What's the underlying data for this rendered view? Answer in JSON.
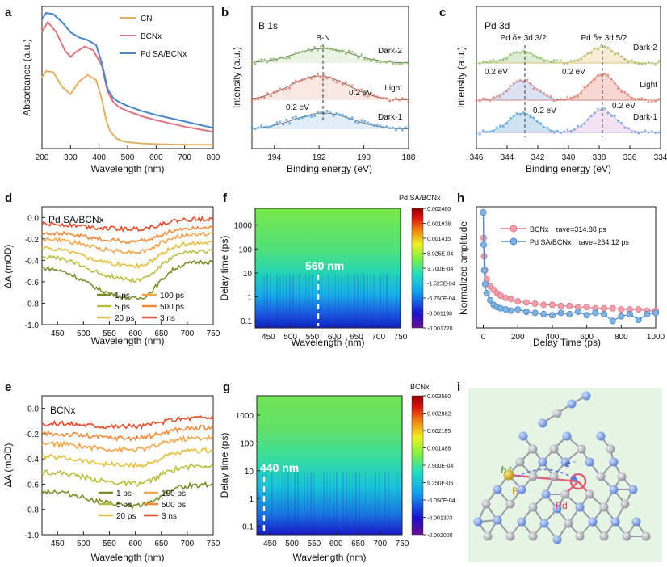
{
  "figure": {
    "panel_labels": [
      "a",
      "b",
      "c",
      "d",
      "e",
      "f",
      "g",
      "h",
      "i"
    ]
  },
  "chart_data": [
    {
      "id": "a",
      "type": "line",
      "xlabel": "Wavelength (nm)",
      "ylabel": "Absorbance (a.u.)",
      "xlim": [
        200,
        800
      ],
      "ylim": [
        0,
        1.1
      ],
      "xticks": [
        200,
        300,
        400,
        500,
        600,
        700,
        800
      ],
      "legend": [
        "CN",
        "BCNx",
        "Pd SA/BCNx"
      ],
      "series": [
        {
          "name": "CN",
          "color": "#e3b063",
          "x": [
            200,
            215,
            240,
            270,
            300,
            330,
            360,
            390,
            410,
            425,
            440,
            460,
            480,
            500,
            550,
            600,
            700,
            800
          ],
          "y": [
            0.55,
            0.6,
            0.59,
            0.48,
            0.42,
            0.52,
            0.57,
            0.53,
            0.38,
            0.22,
            0.13,
            0.08,
            0.06,
            0.05,
            0.04,
            0.035,
            0.03,
            0.03
          ]
        },
        {
          "name": "BCNx",
          "color": "#e07480",
          "x": [
            200,
            220,
            250,
            280,
            300,
            320,
            350,
            380,
            410,
            430,
            450,
            470,
            500,
            550,
            600,
            700,
            800
          ],
          "y": [
            0.9,
            0.98,
            0.9,
            0.76,
            0.71,
            0.75,
            0.79,
            0.76,
            0.64,
            0.44,
            0.36,
            0.32,
            0.29,
            0.25,
            0.22,
            0.17,
            0.13
          ]
        },
        {
          "name": "Pd SA/BCNx",
          "color": "#4a86c8",
          "x": [
            200,
            215,
            240,
            270,
            300,
            330,
            360,
            390,
            410,
            430,
            450,
            470,
            500,
            550,
            600,
            700,
            800
          ],
          "y": [
            1.0,
            1.05,
            1.04,
            0.98,
            0.9,
            0.86,
            0.84,
            0.8,
            0.66,
            0.46,
            0.39,
            0.36,
            0.33,
            0.29,
            0.26,
            0.21,
            0.16
          ]
        }
      ]
    },
    {
      "id": "b",
      "type": "scatter",
      "title": "B 1s",
      "xlabel": "Binding energy (eV)",
      "ylabel": "Intensity (a.u.)",
      "xlim": [
        195,
        188
      ],
      "xticks": [
        194,
        192,
        190,
        188
      ],
      "peak_label": "B-N",
      "peak_position": 191.8,
      "traces": [
        {
          "name": "Dark-2",
          "color": "#8fbf6a",
          "peak": 191.8
        },
        {
          "name": "Light",
          "color": "#e07a6a",
          "peak": 192.0
        },
        {
          "name": "Dark-1",
          "color": "#5aa2d8",
          "peak": 191.8
        }
      ],
      "annotations": [
        "0.2 eV",
        "0.2 eV"
      ]
    },
    {
      "id": "c",
      "type": "scatter",
      "title": "Pd 3d",
      "xlabel": "Binding energy (eV)",
      "ylabel": "Intensity (a.u.)",
      "xlim": [
        346,
        334
      ],
      "xticks": [
        346,
        344,
        342,
        340,
        338,
        336,
        334
      ],
      "peak_labels": [
        "Pd δ+ 3d 3/2",
        "Pd δ+ 3d 5/2"
      ],
      "peak_positions": [
        343.0,
        337.8
      ],
      "traces": [
        {
          "name": "Dark-2",
          "color": "#8fbf6a"
        },
        {
          "name": "Light",
          "color": "#e07a6a"
        },
        {
          "name": "Dark-1",
          "color": "#5aa2d8"
        }
      ],
      "annotations": [
        "0.2 eV",
        "0.2 eV",
        "0.2 eV",
        "0.2 eV"
      ]
    },
    {
      "id": "d",
      "type": "line",
      "title": "Pd SA/BCNx",
      "xlabel": "Wavelength (nm)",
      "ylabel": "ΔA (mOD)",
      "xlim": [
        420,
        750
      ],
      "ylim": [
        -1.0,
        0.1
      ],
      "xticks": [
        450,
        500,
        550,
        600,
        650,
        700,
        750
      ],
      "yticks": [
        0.0,
        -0.2,
        -0.4,
        -0.6,
        -0.8,
        -1.0
      ],
      "series": [
        {
          "name": "1 ps",
          "color": "#7a8f2a",
          "offset": -0.46,
          "depth": 0.26
        },
        {
          "name": "5 ps",
          "color": "#b8be3c",
          "offset": -0.36,
          "depth": 0.2
        },
        {
          "name": "20 ps",
          "color": "#e5c040",
          "offset": -0.28,
          "depth": 0.16
        },
        {
          "name": "100 ps",
          "color": "#f3a54a",
          "offset": -0.2,
          "depth": 0.12
        },
        {
          "name": "500 ps",
          "color": "#f08a3a",
          "offset": -0.14,
          "depth": 0.09
        },
        {
          "name": "3 ns",
          "color": "#e64a2a",
          "offset": -0.06,
          "depth": 0.06
        }
      ]
    },
    {
      "id": "e",
      "type": "line",
      "title": "BCNx",
      "xlabel": "Wavelength (nm)",
      "ylabel": "ΔA (mOD)",
      "xlim": [
        420,
        750
      ],
      "ylim": [
        -1.0,
        0.1
      ],
      "xticks": [
        450,
        500,
        550,
        600,
        650,
        700,
        750
      ],
      "yticks": [
        0.0,
        -0.2,
        -0.4,
        -0.6,
        -0.8,
        -1.0
      ],
      "series": [
        {
          "name": "1 ps",
          "color": "#7a8f2a",
          "offset": -0.65,
          "depth": 0.12
        },
        {
          "name": "5 ps",
          "color": "#b8be3c",
          "offset": -0.5,
          "depth": 0.1
        },
        {
          "name": "20 ps",
          "color": "#e5c040",
          "offset": -0.38,
          "depth": 0.08
        },
        {
          "name": "100 ps",
          "color": "#f3a54a",
          "offset": -0.28,
          "depth": 0.06
        },
        {
          "name": "500 ps",
          "color": "#f08a3a",
          "offset": -0.2,
          "depth": 0.05
        },
        {
          "name": "3 ns",
          "color": "#e64a2a",
          "offset": -0.12,
          "depth": 0.04
        }
      ]
    },
    {
      "id": "f",
      "type": "heatmap",
      "title": "Pd SA/BCNx",
      "xlabel": "Wavelength (nm)",
      "ylabel": "Delay time (ps)",
      "xlim": [
        420,
        750
      ],
      "ylim": [
        0.05,
        5000
      ],
      "xticks": [
        450,
        500,
        550,
        600,
        650,
        700,
        750
      ],
      "yticks": [
        "0.1",
        "1",
        "10",
        "100",
        "1000"
      ],
      "marker_wavelength": 560,
      "marker_label": "560 nm",
      "colorbar_ticks": [
        "0.002460",
        "0.001938",
        "0.001415",
        "8.925E-04",
        "3.700E-04",
        "-1.525E-04",
        "-6.750E-04",
        "-0.001198",
        "-0.001720"
      ]
    },
    {
      "id": "g",
      "type": "heatmap",
      "title": "BCNx",
      "xlabel": "Wavelength (nm)",
      "ylabel": "Delay time (ps)",
      "xlim": [
        420,
        750
      ],
      "ylim": [
        0.05,
        5000
      ],
      "xticks": [
        450,
        500,
        550,
        600,
        650,
        700,
        750
      ],
      "yticks": [
        "0.1",
        "1",
        "10",
        "100",
        "1000"
      ],
      "marker_wavelength": 440,
      "marker_label": "440 nm",
      "colorbar_ticks": [
        "0.003580",
        "0.002882",
        "0.002185",
        "0.001488",
        "7.900E-04",
        "9.250E-05",
        "-6.050E-04",
        "-0.001303",
        "-0.002000"
      ]
    },
    {
      "id": "h",
      "type": "scatter",
      "xlabel": "Delay Time (ps)",
      "ylabel": "Normalized amplitude",
      "xlim": [
        -40,
        1000
      ],
      "ylim": [
        0,
        1.05
      ],
      "xticks": [
        0,
        200,
        400,
        600,
        800,
        1000
      ],
      "series": [
        {
          "name": "BCNx",
          "tau_label": "τave=314.88 ps",
          "color": "#f0a0ac",
          "x": [
            0,
            2,
            5,
            10,
            20,
            40,
            60,
            80,
            100,
            130,
            160,
            200,
            250,
            300,
            350,
            400,
            450,
            500,
            550,
            600,
            650,
            700,
            750,
            800,
            850,
            900,
            950,
            1000
          ],
          "y": [
            1.0,
            0.78,
            0.62,
            0.5,
            0.42,
            0.36,
            0.33,
            0.3,
            0.28,
            0.26,
            0.25,
            0.23,
            0.22,
            0.21,
            0.2,
            0.2,
            0.19,
            0.19,
            0.18,
            0.18,
            0.17,
            0.17,
            0.17,
            0.16,
            0.16,
            0.16,
            0.15,
            0.15
          ]
        },
        {
          "name": "Pd SA/BCNx",
          "tau_label": "τave=264.12 ps",
          "color": "#7fb2e0",
          "x": [
            0,
            2,
            5,
            10,
            20,
            40,
            60,
            80,
            100,
            130,
            160,
            200,
            250,
            300,
            350,
            400,
            450,
            500,
            550,
            600,
            650,
            700,
            750,
            800,
            850,
            900,
            950,
            1000
          ],
          "y": [
            1.0,
            0.72,
            0.5,
            0.38,
            0.3,
            0.24,
            0.2,
            0.18,
            0.17,
            0.16,
            0.15,
            0.16,
            0.14,
            0.13,
            0.12,
            0.11,
            0.13,
            0.12,
            0.14,
            0.11,
            0.13,
            0.12,
            0.06,
            0.1,
            0.12,
            0.07,
            0.12,
            0.13
          ]
        }
      ]
    }
  ],
  "panel_i": {
    "labels": {
      "hole": "h⁺",
      "electron": "e⁻",
      "boron": "B",
      "palladium": "Pd"
    },
    "colors": {
      "nitrogen": "#7f9fe0",
      "carbon": "#b8b8c0",
      "boron": "#c9a020",
      "pd_ring": "#e0607a"
    }
  }
}
